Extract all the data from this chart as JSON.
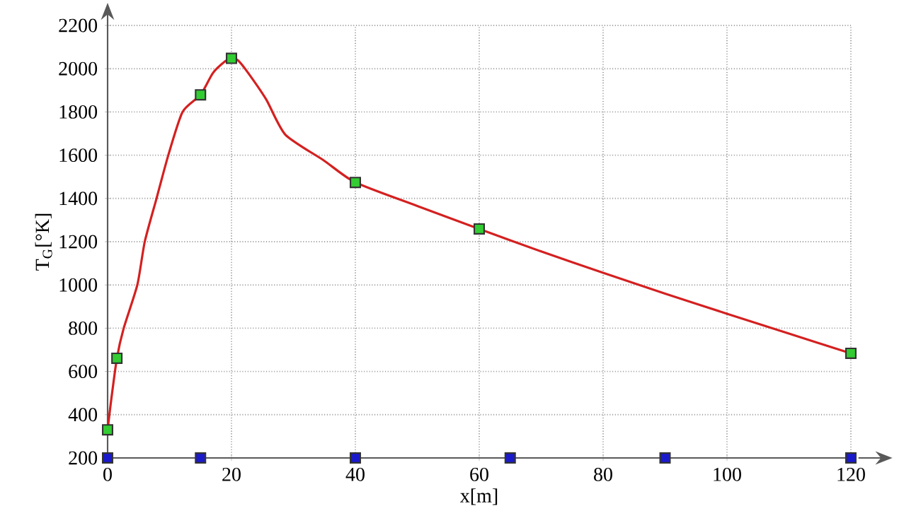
{
  "chart_data": {
    "type": "line",
    "xlabel": "x[m]",
    "ylabel": "T$_{G}$[°K]",
    "xlim": [
      0,
      120
    ],
    "xticks": [
      0,
      20,
      40,
      60,
      80,
      100,
      120
    ],
    "ylim": [
      200,
      2200
    ],
    "yticks": [
      200,
      400,
      600,
      800,
      1000,
      1200,
      1400,
      1600,
      1800,
      2000,
      2200
    ],
    "grid": true,
    "line_style": "solid",
    "series": [
      {
        "color": "#d42020",
        "marker": "none",
        "x": [
          0,
          0.5,
          1.5,
          2.6,
          4.8,
          6,
          7.9,
          9.8,
          12.1,
          15,
          17,
          19,
          20,
          21,
          22.5,
          25.6,
          28.7,
          34.9,
          40,
          50,
          60,
          70,
          80,
          90,
          100,
          110,
          120
        ],
        "values": [
          330,
          450,
          661,
          800,
          1000,
          1200,
          1400,
          1600,
          1800,
          1879,
          1980,
          2035,
          2048,
          2040,
          1988,
          1858,
          1695,
          1576,
          1474,
          1365,
          1259,
          1155,
          1056,
          960,
          867,
          775,
          684
        ]
      },
      {
        "type": "scatter",
        "color": "#33cc33",
        "marker": "square",
        "x": [
          0,
          1.5,
          15,
          20,
          40,
          60,
          120
        ],
        "values": [
          330,
          661,
          1879,
          2048,
          1474,
          1259,
          684
        ]
      },
      {
        "type": "scatter",
        "color": "#1a1acc",
        "marker": "square",
        "x": [
          0,
          15,
          40,
          65,
          90,
          120
        ],
        "values": [
          200,
          200,
          200,
          200,
          200,
          200
        ]
      }
    ]
  }
}
